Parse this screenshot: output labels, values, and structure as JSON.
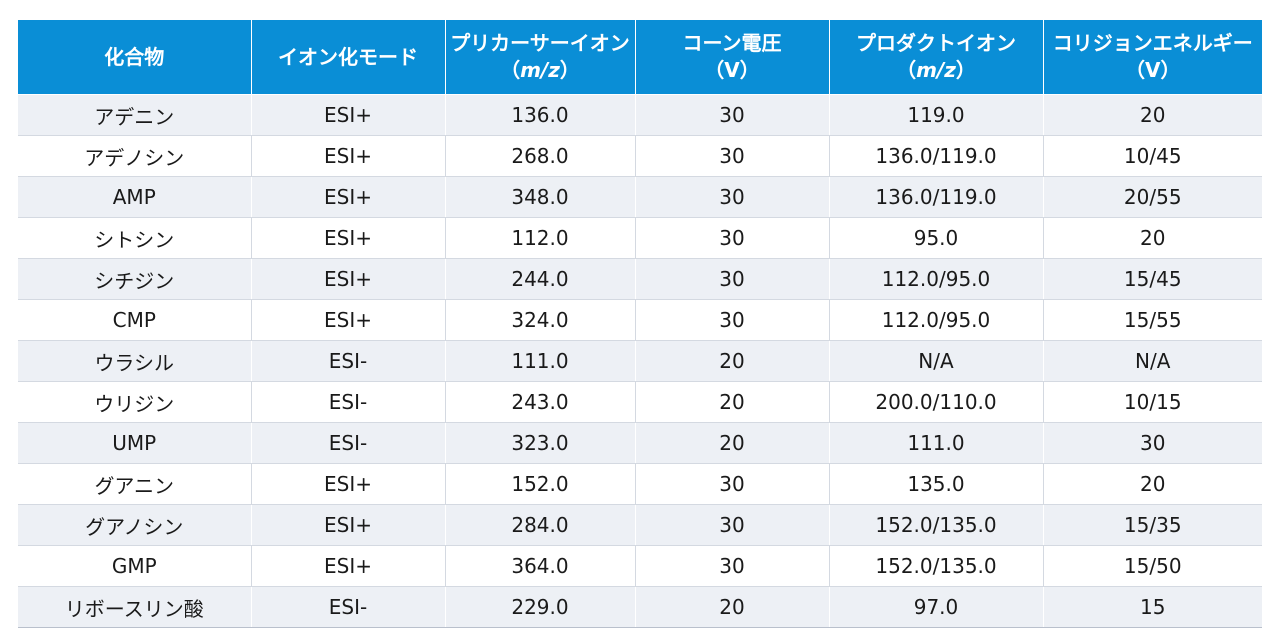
{
  "table": {
    "headers": [
      {
        "line1": "化合物",
        "line2": ""
      },
      {
        "line1": "イオン化モード",
        "line2": ""
      },
      {
        "line1": "プリカーサーイオン",
        "line2_open": "（",
        "line2_italic": "m/z",
        "line2_close": "）"
      },
      {
        "line1": "コーン電圧",
        "line2": "（V）"
      },
      {
        "line1": "プロダクトイオン",
        "line2_open": "（",
        "line2_italic": "m/z",
        "line2_close": "）"
      },
      {
        "line1": "コリジョンエネルギー",
        "line2": "（V）"
      }
    ],
    "rows": [
      [
        "アデニン",
        "ESI+",
        "136.0",
        "30",
        "119.0",
        "20"
      ],
      [
        "アデノシン",
        "ESI+",
        "268.0",
        "30",
        "136.0/119.0",
        "10/45"
      ],
      [
        "AMP",
        "ESI+",
        "348.0",
        "30",
        "136.0/119.0",
        "20/55"
      ],
      [
        "シトシン",
        "ESI+",
        "112.0",
        "30",
        "95.0",
        "20"
      ],
      [
        "シチジン",
        "ESI+",
        "244.0",
        "30",
        "112.0/95.0",
        "15/45"
      ],
      [
        "CMP",
        "ESI+",
        "324.0",
        "30",
        "112.0/95.0",
        "15/55"
      ],
      [
        "ウラシル",
        "ESI-",
        "111.0",
        "20",
        "N/A",
        "N/A"
      ],
      [
        "ウリジン",
        "ESI-",
        "243.0",
        "20",
        "200.0/110.0",
        "10/15"
      ],
      [
        "UMP",
        "ESI-",
        "323.0",
        "20",
        "111.0",
        "30"
      ],
      [
        "グアニン",
        "ESI+",
        "152.0",
        "30",
        "135.0",
        "20"
      ],
      [
        "グアノシン",
        "ESI+",
        "284.0",
        "30",
        "152.0/135.0",
        "15/35"
      ],
      [
        "GMP",
        "ESI+",
        "364.0",
        "30",
        "152.0/135.0",
        "15/50"
      ],
      [
        "リボースリン酸",
        "ESI-",
        "229.0",
        "20",
        "97.0",
        "15"
      ]
    ]
  },
  "colors": {
    "header_bg": "#0a8ed6",
    "row_alt_bg": "#edf0f5"
  }
}
